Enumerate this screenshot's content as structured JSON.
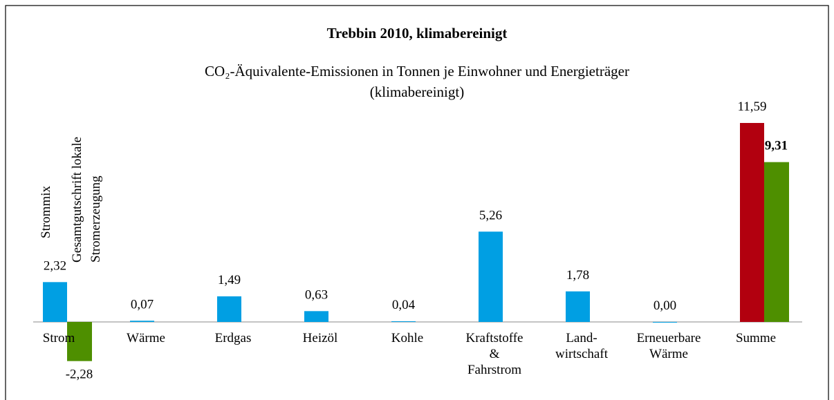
{
  "chart_data": {
    "type": "bar",
    "title": "Trebbin 2010, klimabereinigt",
    "subtitle": [
      "CO₂-Äquivalente-Emissionen in Tonnen je Einwohner und Energieträger",
      "(klimabereinigt)"
    ],
    "categories": [
      "Strom",
      "Wärme",
      "Erdgas",
      "Heizöl",
      "Kohle",
      "Kraftstoffe\n&\nFahrstrom",
      "Land-\nwirtschaft",
      "Erneuerbare\nWärme",
      "Summe"
    ],
    "annotations": [
      [
        "Strommix"
      ],
      [
        "Gesamtgutschrift lokale",
        "Stromerzeugung"
      ]
    ],
    "series": [
      {
        "color": "#009fe3",
        "colors": [
          "#009fe3",
          "#009fe3",
          "#009fe3",
          "#009fe3",
          "#009fe3",
          "#009fe3",
          "#009fe3",
          "#009fe3",
          "#b2000f"
        ],
        "values": [
          2.32,
          0.07,
          1.49,
          0.63,
          0.04,
          5.26,
          1.78,
          0.0,
          11.59
        ],
        "value_labels": [
          "2,32",
          "0,07",
          "1,49",
          "0,63",
          "0,04",
          "5,26",
          "1,78",
          "0,00",
          "11,59"
        ]
      },
      {
        "color": "#4e8f00",
        "values": [
          -2.28,
          null,
          null,
          null,
          null,
          null,
          null,
          null,
          9.31
        ],
        "value_labels": [
          "-2,28",
          null,
          null,
          null,
          null,
          null,
          null,
          null,
          "9,31"
        ]
      }
    ]
  }
}
